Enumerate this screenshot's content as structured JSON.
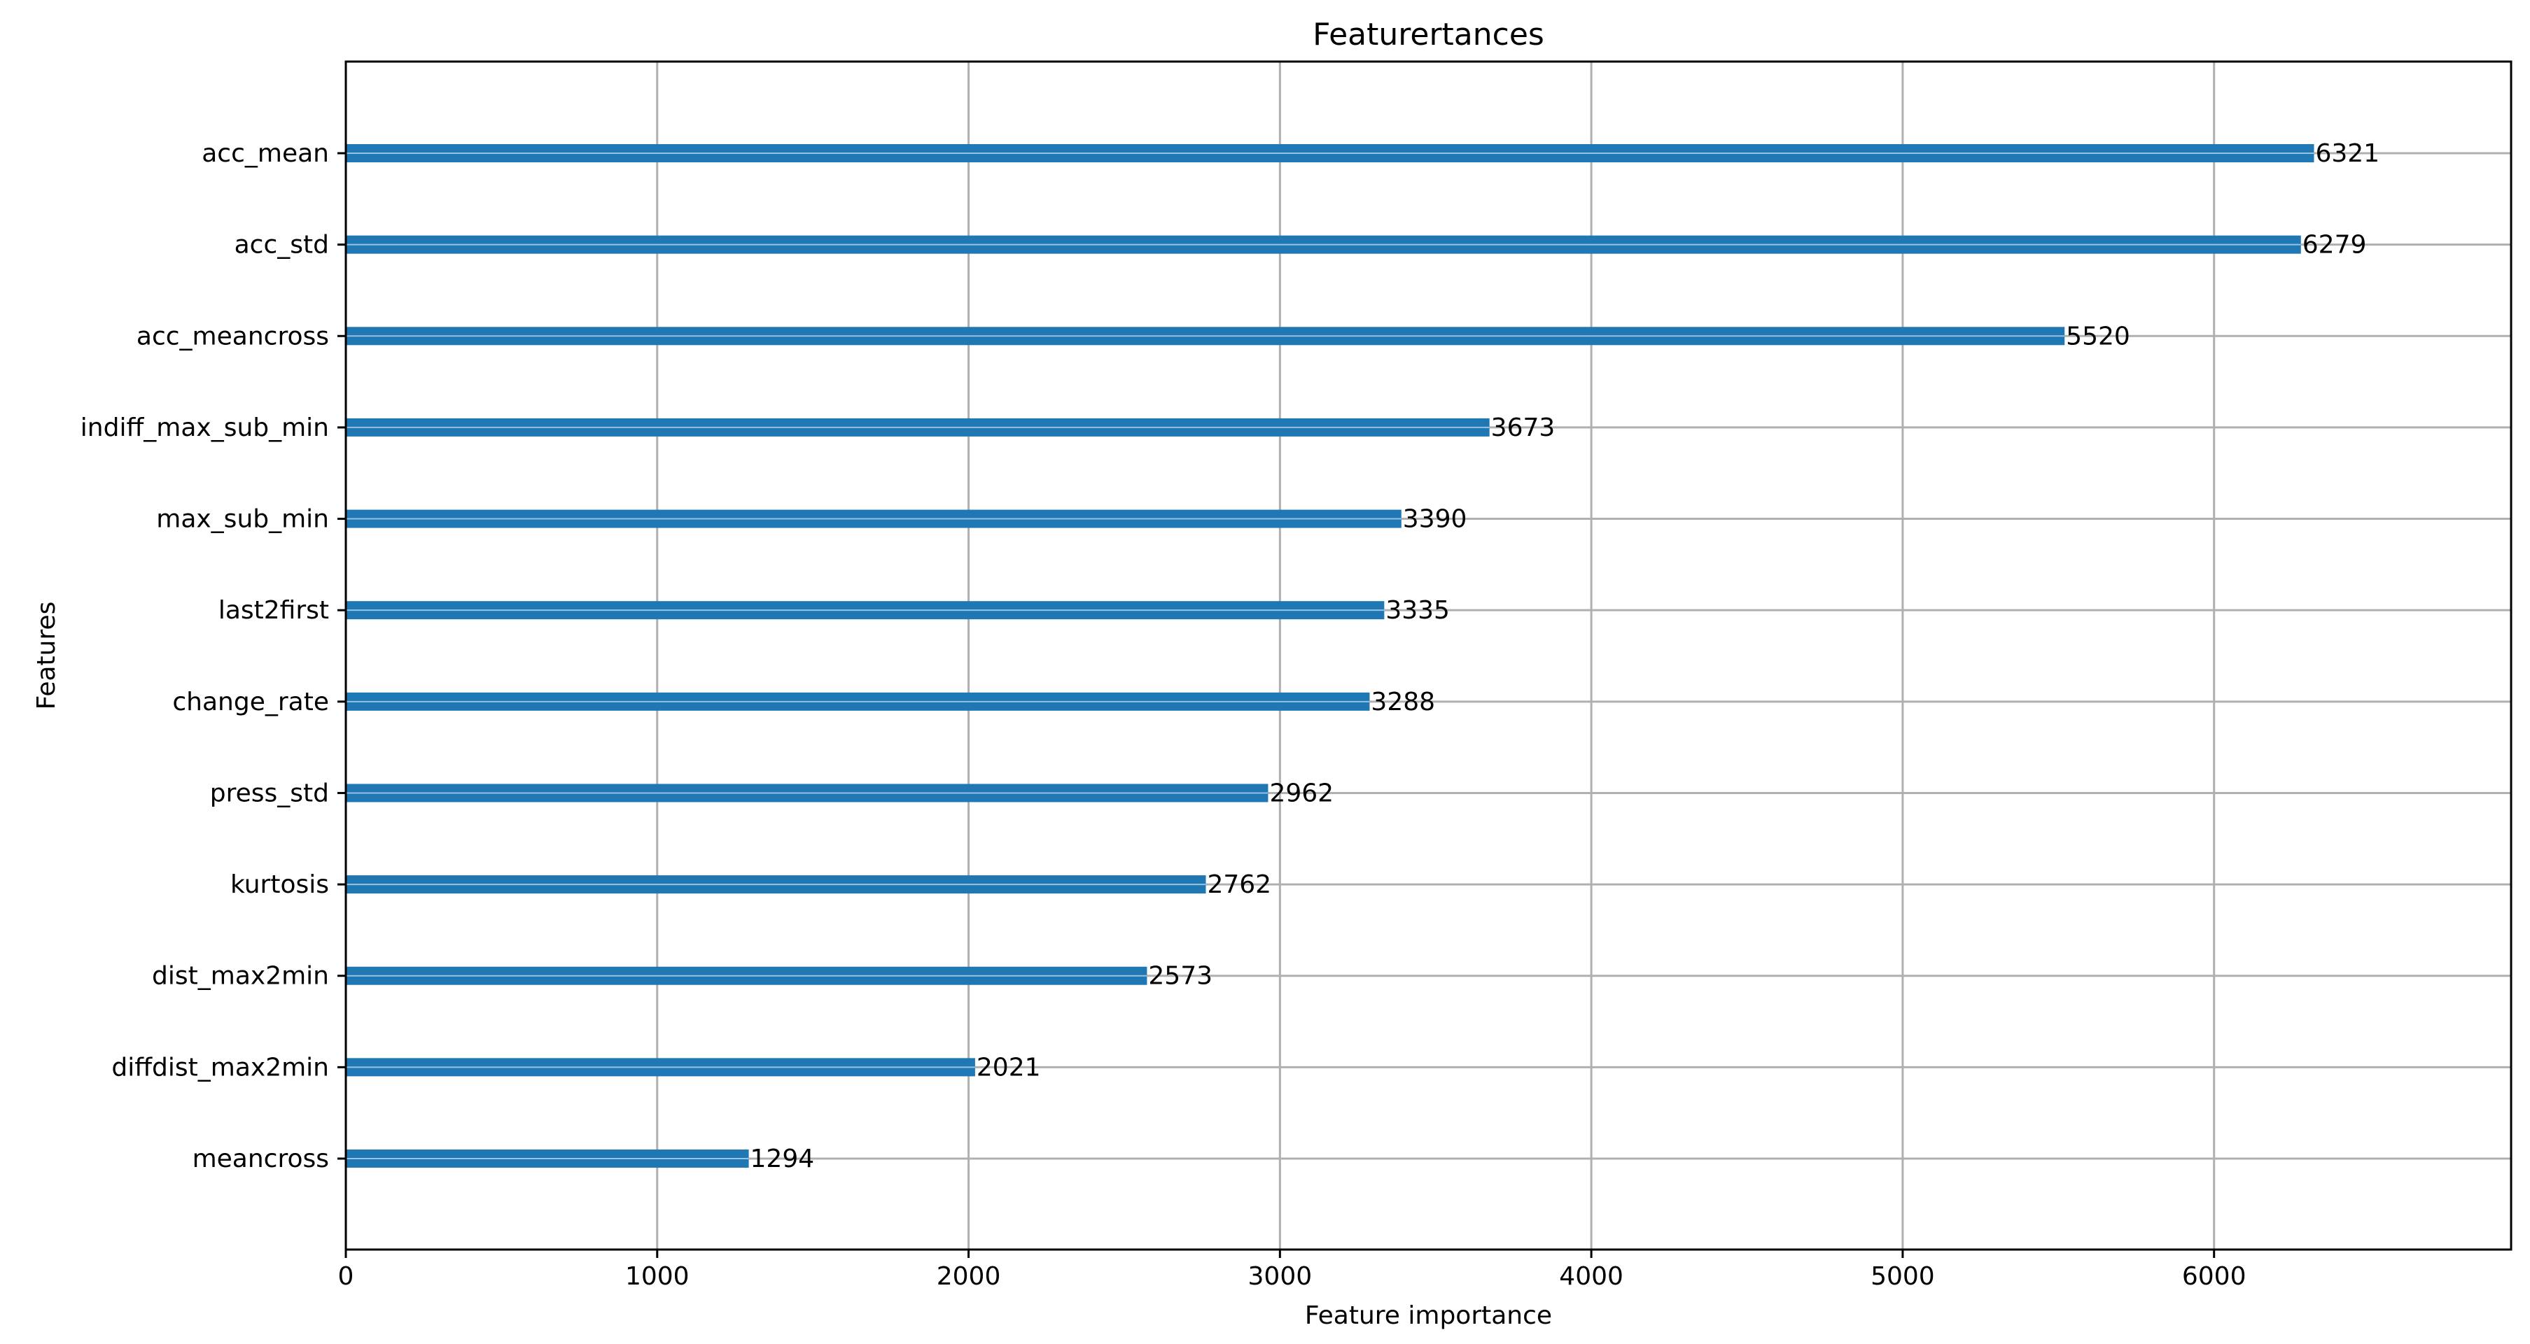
{
  "chart_data": {
    "type": "bar",
    "orientation": "horizontal",
    "title": "Featurertances",
    "xlabel": "Feature importance",
    "ylabel": "Features",
    "categories": [
      "acc_mean",
      "acc_std",
      "acc_meancross",
      "indiff_max_sub_min",
      "max_sub_min",
      "last2first",
      "change_rate",
      "press_std",
      "kurtosis",
      "dist_max2min",
      "diffdist_max2min",
      "meancross"
    ],
    "values": [
      6321,
      6279,
      5520,
      3673,
      3390,
      3335,
      3288,
      2962,
      2762,
      2573,
      2021,
      1294
    ],
    "xlim": [
      0,
      6954
    ],
    "xticks": [
      0,
      1000,
      2000,
      3000,
      4000,
      5000,
      6000
    ],
    "grid": true,
    "bar_color": "#1f77b4",
    "grid_color": "#b0b0b0",
    "show_value_labels": true
  }
}
